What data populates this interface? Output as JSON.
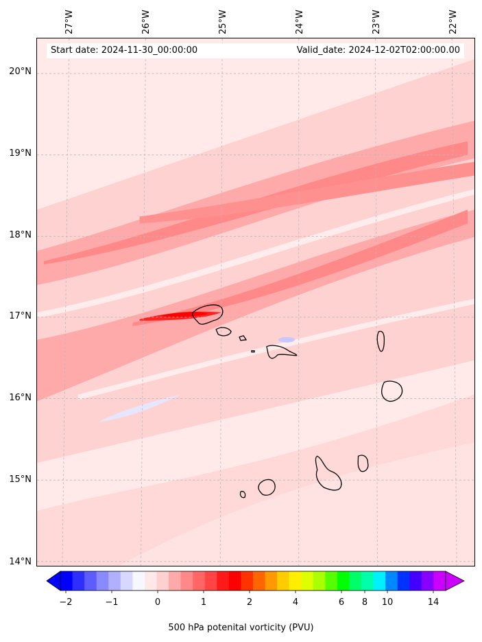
{
  "header": {
    "start_date": "Start date: 2024-11-30_00:00:00",
    "valid_date": "Valid_date: 2024-12-02T02:00:00.00"
  },
  "map": {
    "longitude_labels": [
      "27°W",
      "26°W",
      "25°W",
      "24°W",
      "23°W",
      "22°W"
    ],
    "latitude_labels": [
      "20°N",
      "19°N",
      "18°N",
      "17°N",
      "16°N",
      "15°N",
      "14°N"
    ],
    "gridlines": "dashed-grey"
  },
  "colorbar": {
    "title": "500 hPa potenital vorticity (PVU)",
    "tick_labels": [
      "−2",
      "−1",
      "0",
      "1",
      "2",
      "4",
      "6",
      "8",
      "10",
      "14"
    ],
    "colors": [
      "#0000ff",
      "#2e2eff",
      "#5c5cff",
      "#8a8aff",
      "#b0b0ff",
      "#d8d8ff",
      "#f7f7ff",
      "#ffe8e8",
      "#ffd0d0",
      "#ffaaaa",
      "#ff8888",
      "#ff6666",
      "#ff4444",
      "#ff1a1a",
      "#ff0000",
      "#ff3300",
      "#ff6600",
      "#ff9900",
      "#ffcc00",
      "#ffee00",
      "#ddff00",
      "#aaff00",
      "#55ff00",
      "#00ff00",
      "#00ff66",
      "#00ffaa",
      "#00f0ff",
      "#0088ff",
      "#0033ff",
      "#4400ff",
      "#8800ff",
      "#cc00ff"
    ],
    "extend": "both"
  }
}
